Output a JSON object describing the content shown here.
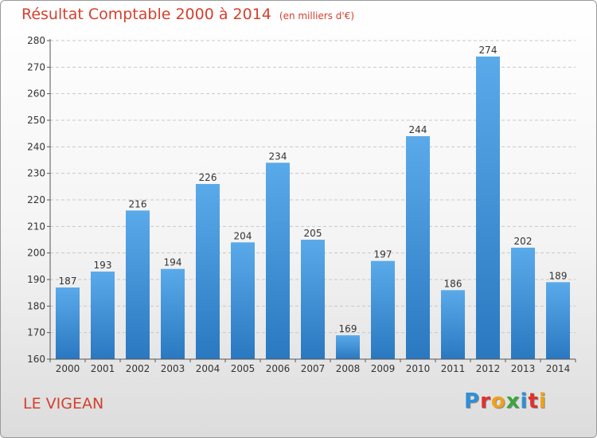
{
  "title": "Résultat Comptable 2000 à 2014",
  "subtitle": "(en milliers d'€)",
  "place": "LE VIGEAN",
  "logo": {
    "text": "Proxiti",
    "letters": [
      {
        "ch": "P",
        "color": "#2f8fd8"
      },
      {
        "ch": "r",
        "color": "#e0302a"
      },
      {
        "ch": "o",
        "color": "#f0a21a"
      },
      {
        "ch": "x",
        "color": "#3aa63a"
      },
      {
        "ch": "i",
        "color": "#2f8fd8"
      },
      {
        "ch": "t",
        "color": "#e0302a"
      },
      {
        "ch": "i",
        "color": "#f0a21a"
      }
    ]
  },
  "colors": {
    "title": "#d4402e",
    "bar_top": "#5aaaea",
    "bar_bottom": "#2a78c0",
    "grid": "#c8c8c8"
  },
  "chart_data": {
    "type": "bar",
    "categories": [
      "2000",
      "2001",
      "2002",
      "2003",
      "2004",
      "2005",
      "2006",
      "2007",
      "2008",
      "2009",
      "2010",
      "2011",
      "2012",
      "2013",
      "2014"
    ],
    "values": [
      187,
      193,
      216,
      194,
      226,
      204,
      234,
      205,
      169,
      197,
      244,
      186,
      274,
      202,
      189
    ],
    "ylim": [
      160,
      280
    ],
    "yticks": [
      160,
      170,
      180,
      190,
      200,
      210,
      220,
      230,
      240,
      250,
      260,
      270,
      280
    ],
    "grid": true,
    "data_labels": true
  }
}
